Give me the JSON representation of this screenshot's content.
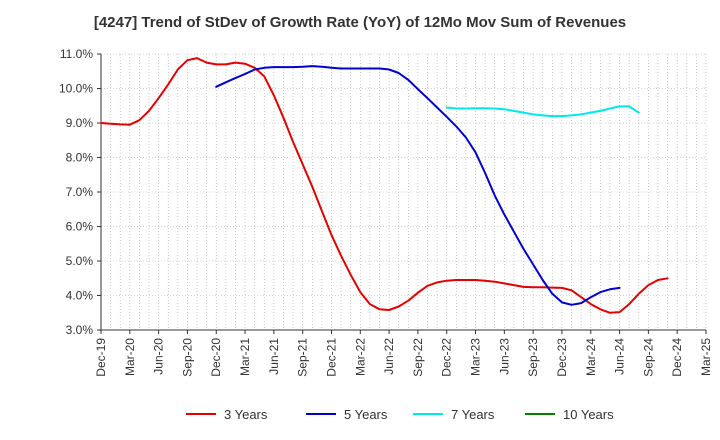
{
  "chart_data": {
    "type": "line",
    "title": "[4247]  Trend of StDev of Growth Rate (YoY) of 12Mo Mov Sum of Revenues",
    "xlabel": "",
    "ylabel": "",
    "ylim": [
      3.0,
      11.0
    ],
    "y_ticks": [
      3.0,
      4.0,
      5.0,
      6.0,
      7.0,
      8.0,
      9.0,
      10.0,
      11.0
    ],
    "y_tick_labels": [
      "3.0%",
      "4.0%",
      "5.0%",
      "6.0%",
      "7.0%",
      "8.0%",
      "9.0%",
      "10.0%",
      "11.0%"
    ],
    "x_tick_labels": [
      "Dec-19",
      "Mar-20",
      "Jun-20",
      "Sep-20",
      "Dec-20",
      "Mar-21",
      "Jun-21",
      "Sep-21",
      "Dec-21",
      "Mar-22",
      "Jun-22",
      "Sep-22",
      "Dec-22",
      "Mar-23",
      "Jun-23",
      "Sep-23",
      "Dec-23",
      "Mar-24",
      "Jun-24",
      "Sep-24",
      "Dec-24",
      "Mar-25"
    ],
    "x_unit": "months since Dec-19",
    "x_range": [
      0,
      63
    ],
    "grid": true,
    "legend_position": "bottom",
    "series": [
      {
        "name": "3 Years",
        "color": "#e00000",
        "x": [
          0,
          1,
          2,
          3,
          4,
          5,
          6,
          7,
          8,
          9,
          10,
          11,
          12,
          13,
          14,
          15,
          16,
          17,
          18,
          19,
          20,
          21,
          22,
          23,
          24,
          25,
          26,
          27,
          28,
          29,
          30,
          31,
          32,
          33,
          34,
          35,
          36,
          37,
          38,
          39,
          40,
          41,
          42,
          43,
          44,
          45,
          46,
          47,
          48,
          49,
          50,
          51,
          52,
          53,
          54,
          55,
          56,
          57,
          58,
          59,
          60,
          61,
          62,
          63
        ],
        "values": [
          9.0,
          8.98,
          8.96,
          8.95,
          9.08,
          9.35,
          9.72,
          10.12,
          10.55,
          10.82,
          10.88,
          10.75,
          10.7,
          10.7,
          10.75,
          10.72,
          10.6,
          10.35,
          9.8,
          9.15,
          8.45,
          7.8,
          7.15,
          6.45,
          5.75,
          5.15,
          4.6,
          4.1,
          3.75,
          3.6,
          3.58,
          3.68,
          3.85,
          4.08,
          4.28,
          4.38,
          4.43,
          4.45,
          4.45,
          4.45,
          4.43,
          4.4,
          4.35,
          4.3,
          4.25,
          4.24,
          4.24,
          4.23,
          4.22,
          4.15,
          3.95,
          3.75,
          3.6,
          3.5,
          3.52,
          3.75,
          4.05,
          4.3,
          4.45,
          4.5,
          null,
          null,
          null,
          null
        ]
      },
      {
        "name": "5 Years",
        "color": "#0000cc",
        "x": [
          12,
          13,
          14,
          15,
          16,
          17,
          18,
          19,
          20,
          21,
          22,
          23,
          24,
          25,
          26,
          27,
          28,
          29,
          30,
          31,
          32,
          33,
          34,
          35,
          36,
          37,
          38,
          39,
          40,
          41,
          42,
          43,
          44,
          45,
          46,
          47,
          48,
          49,
          50,
          51,
          52,
          53,
          54,
          55,
          56,
          57,
          58,
          59
        ],
        "values": [
          10.05,
          10.18,
          10.3,
          10.42,
          10.55,
          10.6,
          10.62,
          10.62,
          10.62,
          10.63,
          10.65,
          10.63,
          10.6,
          10.58,
          10.58,
          10.58,
          10.58,
          10.58,
          10.55,
          10.45,
          10.25,
          9.98,
          9.72,
          9.45,
          9.18,
          8.9,
          8.58,
          8.15,
          7.55,
          6.9,
          6.35,
          5.85,
          5.35,
          4.9,
          4.45,
          4.05,
          3.8,
          3.73,
          3.78,
          3.95,
          4.1,
          4.18,
          4.22,
          null,
          null,
          null,
          null,
          null
        ]
      },
      {
        "name": "7 Years",
        "color": "#00e5ee",
        "x": [
          36,
          37,
          38,
          39,
          40,
          41,
          42,
          43,
          44,
          45,
          46,
          47,
          48,
          49,
          50,
          51,
          52,
          53,
          54,
          55,
          56,
          57,
          58,
          59
        ],
        "values": [
          9.45,
          9.42,
          9.42,
          9.43,
          9.43,
          9.42,
          9.4,
          9.35,
          9.3,
          9.25,
          9.22,
          9.2,
          9.2,
          9.22,
          9.25,
          9.3,
          9.35,
          9.42,
          9.48,
          9.48,
          9.3,
          null,
          null,
          null
        ]
      },
      {
        "name": "10 Years",
        "color": "#008000",
        "x": [],
        "values": []
      }
    ]
  }
}
